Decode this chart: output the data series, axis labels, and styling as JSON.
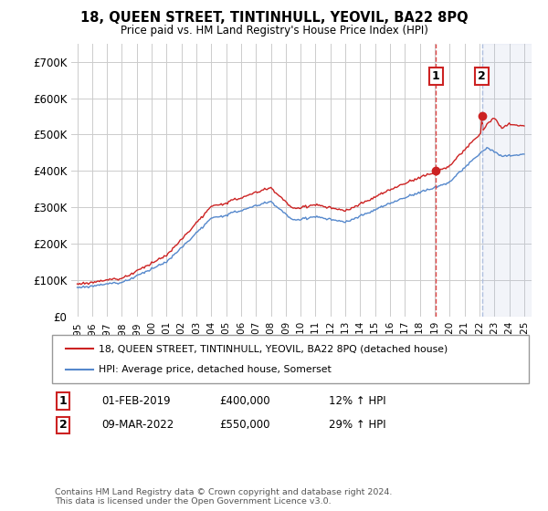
{
  "title": "18, QUEEN STREET, TINTINHULL, YEOVIL, BA22 8PQ",
  "subtitle": "Price paid vs. HM Land Registry's House Price Index (HPI)",
  "legend_line1": "18, QUEEN STREET, TINTINHULL, YEOVIL, BA22 8PQ (detached house)",
  "legend_line2": "HPI: Average price, detached house, Somerset",
  "annotation1_date": "01-FEB-2019",
  "annotation1_price": "£400,000",
  "annotation1_hpi": "12% ↑ HPI",
  "annotation2_date": "09-MAR-2022",
  "annotation2_price": "£550,000",
  "annotation2_hpi": "29% ↑ HPI",
  "footnote": "Contains HM Land Registry data © Crown copyright and database right 2024.\nThis data is licensed under the Open Government Licence v3.0.",
  "hpi_color": "#5588cc",
  "price_color": "#cc2222",
  "marker_color": "#cc2222",
  "vline1_color": "#dd3333",
  "vline2_color": "#aabbdd",
  "shade_color": "#aabbdd",
  "annotation_box_color": "#cc2222",
  "background_color": "#ffffff",
  "grid_color": "#cccccc",
  "ylim": [
    0,
    750000
  ],
  "yticks": [
    0,
    100000,
    200000,
    300000,
    400000,
    500000,
    600000,
    700000
  ],
  "sale1_x": 2019.08,
  "sale1_y": 400000,
  "sale2_x": 2022.17,
  "sale2_y": 550000,
  "xmin": 1995,
  "xmax": 2025
}
